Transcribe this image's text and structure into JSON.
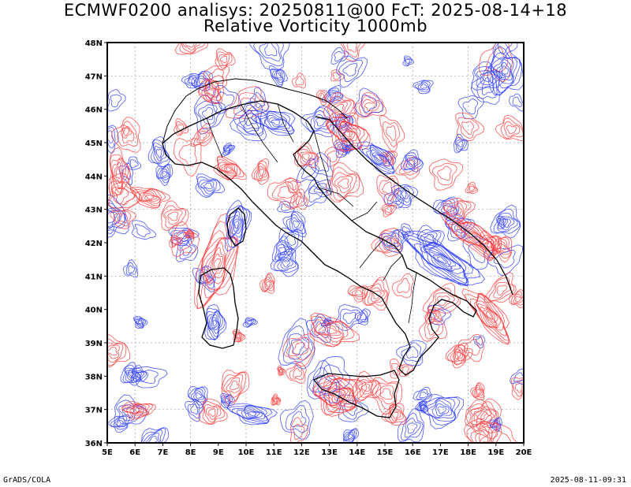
{
  "title_line1": "ECMWF0200 analisys: 20250811@00 FcT: 2025-08-14+18",
  "title_line2": "Relative Vorticity 1000mb",
  "lat_labels": [
    "36N",
    "37N",
    "38N",
    "39N",
    "40N",
    "41N",
    "42N",
    "43N",
    "44N",
    "45N",
    "46N",
    "47N",
    "48N"
  ],
  "lon_labels": [
    "5E",
    "6E",
    "7E",
    "8E",
    "9E",
    "10E",
    "11E",
    "12E",
    "13E",
    "14E",
    "15E",
    "16E",
    "17E",
    "18E",
    "19E",
    "20E"
  ],
  "lat_range": [
    36,
    48
  ],
  "lon_range": [
    5,
    20
  ],
  "colors": {
    "positive": "#ff3b3b",
    "negative": "#2b3bff",
    "coast": "#000000",
    "grid": "#a0a0a0"
  },
  "footer_left": "GrADS/COLA",
  "footer_right": "2025-08-11-09:31"
}
